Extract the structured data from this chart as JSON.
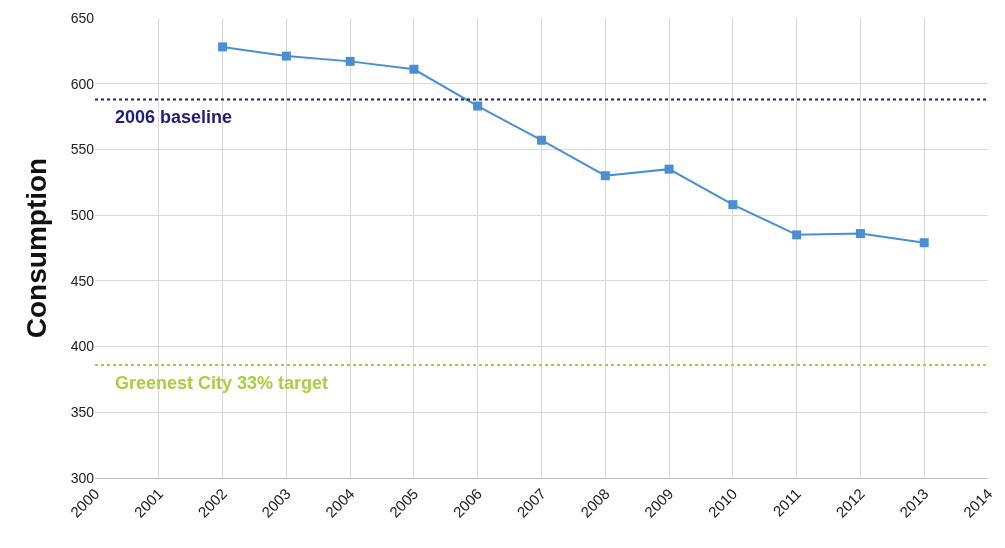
{
  "chart_data": {
    "type": "line",
    "ylabel": "Consumption",
    "x": [
      2002,
      2003,
      2004,
      2005,
      2006,
      2007,
      2008,
      2009,
      2010,
      2011,
      2012,
      2013
    ],
    "series": [
      {
        "color": "#4a8fd4",
        "values": [
          628,
          621,
          617,
          611,
          583,
          557,
          530,
          535,
          508,
          485,
          486,
          479
        ]
      }
    ],
    "xlim": [
      2000,
      2014
    ],
    "xticks": [
      2000,
      2001,
      2002,
      2003,
      2004,
      2005,
      2006,
      2007,
      2008,
      2009,
      2010,
      2011,
      2012,
      2013,
      2014
    ],
    "ylim": [
      300,
      650
    ],
    "yticks": [
      300,
      350,
      400,
      450,
      500,
      550,
      600,
      650
    ],
    "ref_lines": [
      {
        "axis": "y",
        "value": 588,
        "label": "2006 baseline",
        "color": "#1f1f7a",
        "line_style": "dotted"
      },
      {
        "axis": "y",
        "value": 386,
        "label": "Greenest City 33% target",
        "color": "#a8cf3c",
        "line_style": "dotted"
      }
    ],
    "grid": true,
    "marker": "square",
    "line_style": "solid"
  }
}
